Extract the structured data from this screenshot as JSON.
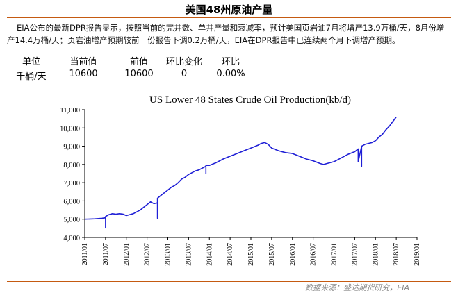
{
  "header": {
    "title": "美国48州原油产量",
    "description": "EIA公布的最新DPR报告显示，按照当前的完井数、单井产量和衰减率，预计美国页岩油7月将增产13.9万桶/天，8月份增产14.4万桶/天；页岩油增产预期较前一份报告下调0.2万桶/天，EIA在DPR报告中已连续两个月下调增产预期。"
  },
  "stats_table": {
    "headers": [
      "单位",
      "当前值",
      "前值",
      "环比变化",
      "环比"
    ],
    "values": [
      "千桶/天",
      "10600",
      "10600",
      "0",
      "0.00%"
    ]
  },
  "chart_data": {
    "type": "line",
    "title": "US Lower 48 States Crude Oil Production(kb/d)",
    "xlabel": "",
    "ylabel": "",
    "ylim": [
      4000,
      11000
    ],
    "yticks": [
      4000,
      5000,
      6000,
      7000,
      8000,
      9000,
      10000,
      11000
    ],
    "ytick_labels": [
      "4,000",
      "5,000",
      "6,000",
      "7,000",
      "8,000",
      "9,000",
      "10,000",
      "11,000"
    ],
    "xlim": [
      "2011-01",
      "2019-01"
    ],
    "xtick_labels": [
      "2011/01",
      "2011/07",
      "2012/01",
      "2012/07",
      "2013/01",
      "2013/07",
      "2014/01",
      "2014/07",
      "2015/01",
      "2015/07",
      "2016/01",
      "2016/07",
      "2017/01",
      "2017/07",
      "2018/01",
      "2018/07",
      "2019/01"
    ],
    "grid": false,
    "color": "#1f1fd6",
    "series": [
      {
        "x": [
          "2011-01",
          "2011-04",
          "2011-06",
          "2011-07",
          "2011-07",
          "2011-07",
          "2011-08",
          "2011-09",
          "2011-10",
          "2011-11",
          "2011-12",
          "2012-01",
          "2012-02",
          "2012-03",
          "2012-04",
          "2012-05",
          "2012-06",
          "2012-07",
          "2012-08",
          "2012-09",
          "2012-10",
          "2012-10",
          "2012-10",
          "2012-11",
          "2012-12",
          "2013-01",
          "2013-02",
          "2013-03",
          "2013-04",
          "2013-05",
          "2013-06",
          "2013-07",
          "2013-08",
          "2013-09",
          "2013-10",
          "2013-11",
          "2013-12",
          "2013-12",
          "2013-12",
          "2014-01",
          "2014-03",
          "2014-05",
          "2014-07",
          "2014-09",
          "2014-11",
          "2015-01",
          "2015-03",
          "2015-04",
          "2015-05",
          "2015-06",
          "2015-07",
          "2015-09",
          "2015-11",
          "2016-01",
          "2016-03",
          "2016-05",
          "2016-07",
          "2016-09",
          "2016-10",
          "2016-11",
          "2017-01",
          "2017-03",
          "2017-05",
          "2017-07",
          "2017-08",
          "2017-08",
          "2017-09",
          "2017-09",
          "2017-09",
          "2017-10",
          "2017-11",
          "2017-12",
          "2018-01",
          "2018-02",
          "2018-03",
          "2018-04",
          "2018-05",
          "2018-06",
          "2018-07"
        ],
        "values": [
          5000,
          5020,
          5050,
          5080,
          4520,
          5150,
          5250,
          5300,
          5270,
          5300,
          5280,
          5200,
          5250,
          5300,
          5400,
          5500,
          5650,
          5800,
          5950,
          5850,
          5900,
          5050,
          6150,
          6300,
          6450,
          6600,
          6750,
          6850,
          7000,
          7200,
          7300,
          7450,
          7550,
          7650,
          7700,
          7800,
          7900,
          7500,
          7950,
          7950,
          8100,
          8300,
          8450,
          8600,
          8750,
          8900,
          9050,
          9150,
          9200,
          9100,
          8900,
          8750,
          8650,
          8600,
          8450,
          8300,
          8200,
          8050,
          8000,
          8050,
          8150,
          8350,
          8550,
          8700,
          8850,
          8150,
          9000,
          7900,
          9000,
          9100,
          9150,
          9200,
          9300,
          9500,
          9650,
          9900,
          10100,
          10350,
          10600
        ]
      }
    ]
  },
  "footer": {
    "source": "数据来源：盛达期货研究，EIA"
  }
}
